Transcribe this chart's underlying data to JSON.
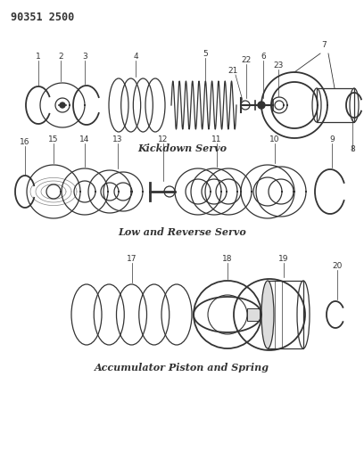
{
  "title": "90351 2500",
  "bg_color": "#ffffff",
  "line_color": "#333333",
  "section1_label": "Kickdown Servo",
  "section2_label": "Low and Reverse Servo",
  "section3_label": "Accumulator Piston and Spring",
  "pn_fontsize": 6.5,
  "label_fontsize": 8.0
}
